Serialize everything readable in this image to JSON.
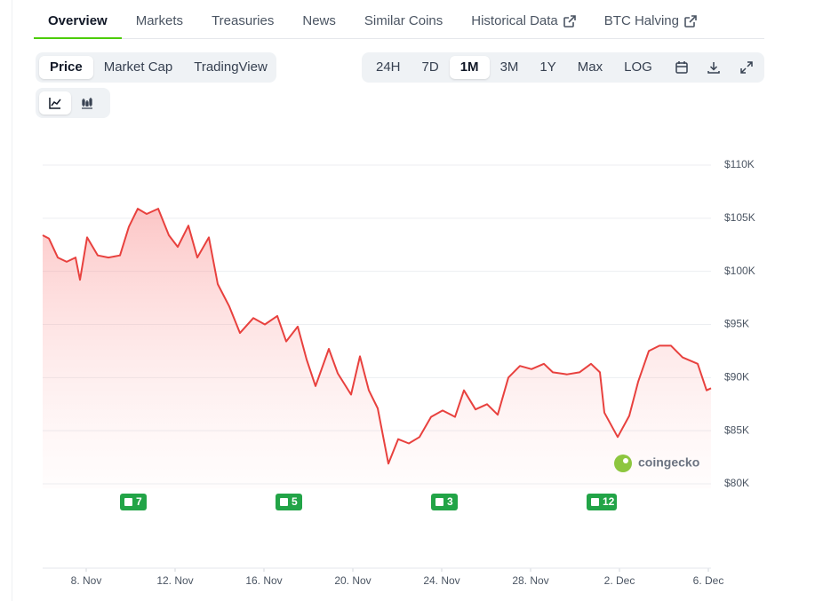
{
  "tabs": [
    {
      "label": "Overview",
      "active": true
    },
    {
      "label": "Markets",
      "active": false
    },
    {
      "label": "Treasuries",
      "active": false
    },
    {
      "label": "News",
      "active": false
    },
    {
      "label": "Similar Coins",
      "active": false
    },
    {
      "label": "Historical Data",
      "active": false,
      "external": true
    },
    {
      "label": "BTC Halving",
      "active": false,
      "external": true
    }
  ],
  "views": [
    {
      "label": "Price",
      "active": true
    },
    {
      "label": "Market Cap",
      "active": false
    },
    {
      "label": "TradingView",
      "active": false
    }
  ],
  "ranges": [
    {
      "label": "24H",
      "active": false
    },
    {
      "label": "7D",
      "active": false
    },
    {
      "label": "1M",
      "active": true
    },
    {
      "label": "3M",
      "active": false
    },
    {
      "label": "1Y",
      "active": false
    },
    {
      "label": "Max",
      "active": false
    },
    {
      "label": "LOG",
      "active": false
    }
  ],
  "news_counts": [
    7,
    5,
    3,
    12
  ],
  "watermark": "coingecko",
  "chart_data": {
    "type": "area",
    "color": "#e8413e",
    "grid": true,
    "x": [
      6.04,
      6.32,
      6.72,
      7.12,
      7.52,
      7.72,
      8.04,
      8.52,
      9.0,
      9.52,
      9.92,
      10.32,
      10.72,
      11.24,
      11.72,
      12.12,
      12.6,
      13.0,
      13.52,
      13.92,
      14.44,
      14.92,
      15.52,
      16.04,
      16.6,
      17.0,
      17.52,
      17.92,
      18.32,
      18.92,
      19.32,
      19.92,
      20.32,
      20.72,
      21.12,
      21.6,
      22.04,
      22.52,
      23.0,
      23.52,
      24.04,
      24.6,
      25.0,
      25.52,
      26.04,
      26.52,
      27.0,
      27.52,
      28.04,
      28.6,
      29.0,
      29.64,
      30.2,
      30.72,
      31.12,
      31.32,
      31.92,
      32.44,
      32.84,
      33.32,
      33.8,
      34.32,
      34.84,
      35.52,
      35.92,
      36.12
    ],
    "series": [
      {
        "values": [
          103400,
          103100,
          101300,
          100900,
          101300,
          99200,
          103200,
          101500,
          101300,
          101500,
          104200,
          105900,
          105400,
          105900,
          103400,
          102300,
          104300,
          101300,
          103200,
          98800,
          96700,
          94200,
          95600,
          95000,
          95800,
          93400,
          94800,
          91700,
          89200,
          92700,
          90400,
          88400,
          92000,
          88800,
          87100,
          81900,
          84200,
          83800,
          84400,
          86300,
          86900,
          86300,
          88800,
          87000,
          87500,
          86500,
          90000,
          91100,
          90800,
          91300,
          90500,
          90300,
          90500,
          91300,
          90500,
          86700,
          84400,
          86400,
          89600,
          92500,
          93000,
          93000,
          91900,
          91300,
          88800,
          89000
        ]
      }
    ],
    "xlim": [
      6.04,
      36.12
    ],
    "xticks": [
      {
        "value": 8,
        "label": "8. Nov"
      },
      {
        "value": 12,
        "label": "12. Nov"
      },
      {
        "value": 16,
        "label": "16. Nov"
      },
      {
        "value": 20,
        "label": "20. Nov"
      },
      {
        "value": 24,
        "label": "24. Nov"
      },
      {
        "value": 28,
        "label": "28. Nov"
      },
      {
        "value": 32,
        "label": "2. Dec"
      },
      {
        "value": 36,
        "label": "6. Dec"
      }
    ],
    "ylim": [
      80000,
      110000
    ],
    "yticks": [
      {
        "value": 80000,
        "label": "$80K"
      },
      {
        "value": 85000,
        "label": "$85K"
      },
      {
        "value": 90000,
        "label": "$90K"
      },
      {
        "value": 95000,
        "label": "$95K"
      },
      {
        "value": 100000,
        "label": "$100K"
      },
      {
        "value": 105000,
        "label": "$105K"
      },
      {
        "value": 110000,
        "label": "$110K"
      }
    ]
  }
}
